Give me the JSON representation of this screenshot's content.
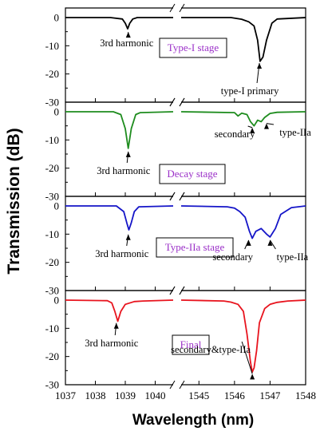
{
  "chart_data": {
    "type": "line",
    "xlabel": "Wavelength (nm)",
    "ylabel": "Transmission (dB)",
    "x_axis": {
      "break": true,
      "left_range": [
        1037,
        1040.6
      ],
      "right_range": [
        1544.5,
        1548
      ],
      "left_ticks": [
        "1037",
        "1038",
        "1039",
        "1040"
      ],
      "right_ticks": [
        "1545",
        "1546",
        "1547",
        "1548"
      ]
    },
    "ylim": [
      -30,
      0
    ],
    "yticks": [
      "0",
      "-10",
      "-20",
      "-30"
    ],
    "panels": [
      {
        "stage_label": "Type-I stage",
        "color": "#000000",
        "annotations": [
          {
            "text": "3rd harmonic",
            "x": 1039.1,
            "y": -4
          },
          {
            "text": "type-I primary",
            "x": 1546.7,
            "y": -15
          }
        ],
        "left_series": {
          "x": [
            1037,
            1038.5,
            1038.9,
            1039.0,
            1039.08,
            1039.15,
            1039.25,
            1039.4,
            1040.6
          ],
          "y": [
            0,
            0,
            -0.5,
            -2,
            -4,
            -2,
            -0.5,
            0,
            0
          ]
        },
        "right_series": {
          "x": [
            1544.5,
            1545.5,
            1545.9,
            1546.2,
            1546.4,
            1546.55,
            1546.65,
            1546.72,
            1546.8,
            1546.9,
            1547.05,
            1547.2,
            1548
          ],
          "y": [
            0,
            0,
            0,
            -0.6,
            -1.5,
            -3,
            -8,
            -15.5,
            -14,
            -8,
            -2,
            -0.5,
            0
          ]
        }
      },
      {
        "stage_label": "Decay stage",
        "color": "#1e8c1e",
        "annotations": [
          {
            "text": "3rd harmonic",
            "x": 1039.1,
            "y": -13
          },
          {
            "text": "secondary",
            "x": 1546.5,
            "y": -4.5
          },
          {
            "text": "type-IIa",
            "x": 1546.9,
            "y": -3
          }
        ],
        "left_series": {
          "x": [
            1037,
            1038.6,
            1038.85,
            1039.0,
            1039.1,
            1039.2,
            1039.35,
            1039.5,
            1040.6
          ],
          "y": [
            0,
            0,
            -1,
            -6,
            -13,
            -6,
            -1,
            -0.3,
            0
          ]
        },
        "right_series": {
          "x": [
            1544.5,
            1546.0,
            1546.1,
            1546.2,
            1546.35,
            1546.45,
            1546.55,
            1546.65,
            1546.75,
            1546.85,
            1547.0,
            1547.2,
            1548
          ],
          "y": [
            0,
            -0.3,
            -1.5,
            -0.5,
            -1,
            -3.5,
            -5,
            -3,
            -3.5,
            -2,
            -0.6,
            -0.2,
            0
          ]
        }
      },
      {
        "stage_label": "Type-IIa stage",
        "color": "#1515c8",
        "annotations": [
          {
            "text": "3rd harmonic",
            "x": 1039.1,
            "y": -9
          },
          {
            "text": "secondary",
            "x": 1546.4,
            "y": -11
          },
          {
            "text": "type-IIa",
            "x": 1547.0,
            "y": -11
          }
        ],
        "left_series": {
          "x": [
            1037,
            1038.7,
            1038.95,
            1039.05,
            1039.12,
            1039.2,
            1039.3,
            1039.45,
            1040.6
          ],
          "y": [
            0,
            0,
            -2,
            -6,
            -8.5,
            -6,
            -2,
            -0.3,
            0
          ]
        },
        "right_series": {
          "x": [
            1544.5,
            1545.8,
            1546.0,
            1546.15,
            1546.3,
            1546.42,
            1546.5,
            1546.6,
            1546.75,
            1546.9,
            1547.0,
            1547.15,
            1547.3,
            1547.6,
            1548
          ],
          "y": [
            0,
            -0.3,
            -0.8,
            -2,
            -4,
            -9,
            -11.5,
            -9,
            -8,
            -10,
            -11,
            -8,
            -3,
            -0.6,
            0
          ]
        }
      },
      {
        "stage_label": "Final",
        "color": "#e8141e",
        "annotations": [
          {
            "text": "3rd harmonic",
            "x": 1038.7,
            "y": -7
          },
          {
            "text": "secondary&type-IIa",
            "x": 1546.5,
            "y": -25
          }
        ],
        "left_series": {
          "x": [
            1037,
            1038.4,
            1038.55,
            1038.65,
            1038.75,
            1038.85,
            1039.0,
            1039.3,
            1039.6,
            1040.6
          ],
          "y": [
            0,
            -0.2,
            -1,
            -4,
            -7.5,
            -4,
            -1.5,
            -0.5,
            -0.3,
            0
          ]
        },
        "right_series": {
          "x": [
            1544.5,
            1545.7,
            1545.9,
            1546.1,
            1546.25,
            1546.35,
            1546.45,
            1546.5,
            1546.55,
            1546.62,
            1546.7,
            1546.85,
            1547.0,
            1547.2,
            1547.5,
            1548
          ],
          "y": [
            0,
            -0.3,
            -0.7,
            -1.5,
            -4,
            -12,
            -22,
            -25.5,
            -24,
            -18,
            -8,
            -3,
            -1.5,
            -0.8,
            -0.3,
            0
          ]
        }
      }
    ]
  }
}
